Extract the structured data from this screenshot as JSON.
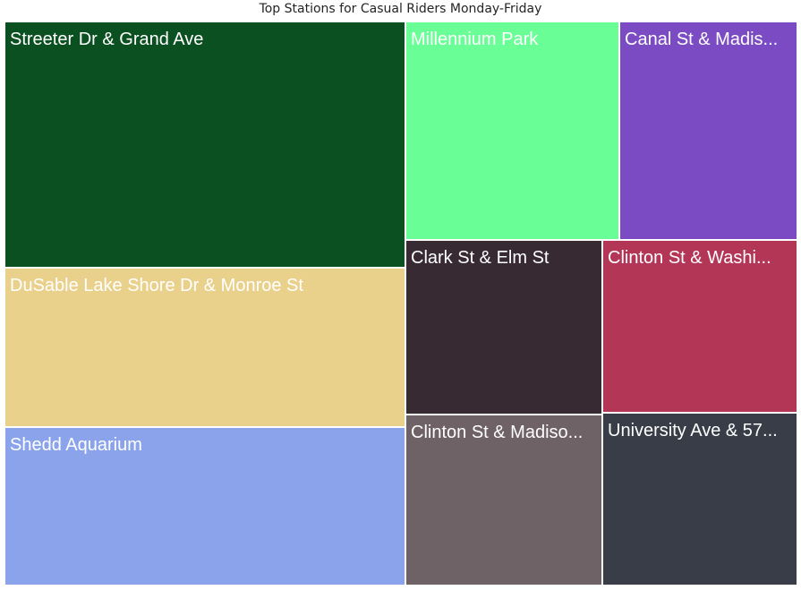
{
  "chart_data": {
    "type": "treemap",
    "title": "Top Stations for Casual Riders Monday-Friday",
    "items": [
      {
        "label": "Streeter Dr & Grand Ave",
        "color": "#0b5020"
      },
      {
        "label": "DuSable Lake Shore Dr & Monroe St",
        "color": "#e9d08b"
      },
      {
        "label": "Shedd Aquarium",
        "color": "#8aa3ea"
      },
      {
        "label": "Millennium Park",
        "color": "#6aff96"
      },
      {
        "label": "Canal St & Madis...",
        "color": "#7b4bc4"
      },
      {
        "label": "Clark St & Elm St",
        "color": "#372a33"
      },
      {
        "label": "Clinton St & Washi...",
        "color": "#b43656"
      },
      {
        "label": "Clinton St & Madiso...",
        "color": "#6e6266"
      },
      {
        "label": "University Ave & 57...",
        "color": "#383d48"
      }
    ]
  }
}
